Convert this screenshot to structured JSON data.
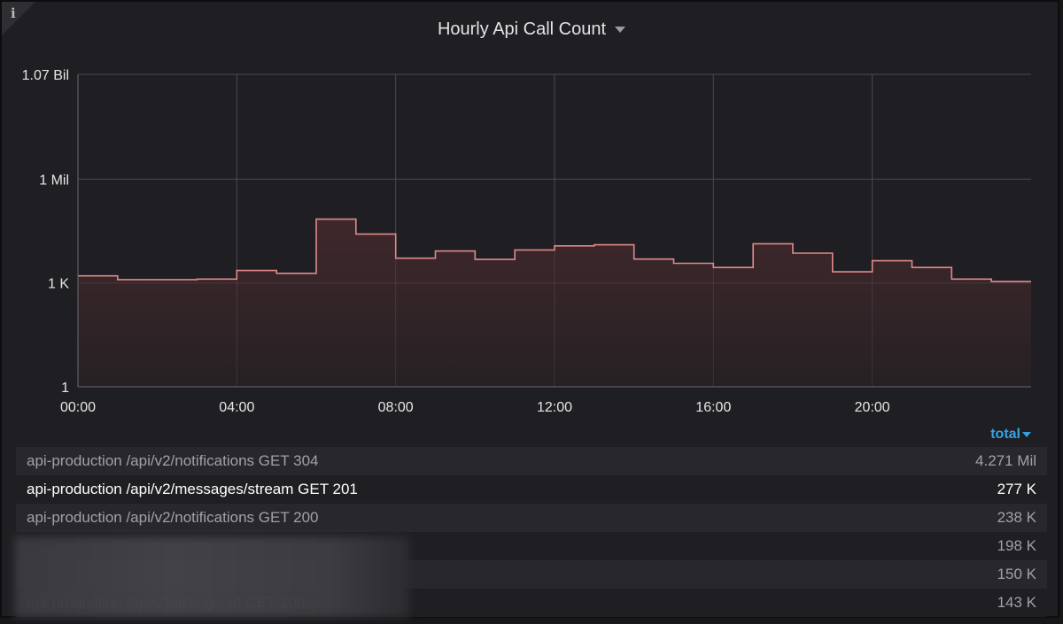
{
  "panel": {
    "title": "Hourly Api Call Count",
    "info_icon": "info-icon",
    "title_menu_icon": "caret-down-icon"
  },
  "chart_data": {
    "type": "line",
    "style": "stepped-area",
    "title": "Hourly Api Call Count",
    "yscale": "log",
    "ylim": [
      1,
      1070000000
    ],
    "xlim_hours": [
      0,
      24
    ],
    "y_tick_labels": [
      "1.07 Bil",
      "1 Mil",
      "1 K",
      "1"
    ],
    "y_tick_values": [
      1070000000,
      1000000,
      1000,
      1
    ],
    "x_tick_labels": [
      "00:00",
      "04:00",
      "08:00",
      "12:00",
      "16:00",
      "20:00"
    ],
    "x_tick_hours": [
      0,
      4,
      8,
      12,
      16,
      20
    ],
    "grid": true,
    "series": [
      {
        "color": "#e08a8a",
        "x_hours": [
          0,
          1,
          2,
          3,
          4,
          5,
          6,
          7,
          8,
          9,
          10,
          11,
          12,
          13,
          14,
          15,
          16,
          17,
          18,
          19,
          20,
          21,
          22,
          23
        ],
        "values": [
          1600,
          1250,
          1250,
          1300,
          2300,
          1900,
          70000,
          26000,
          5200,
          8400,
          4800,
          9000,
          11800,
          12700,
          4900,
          3700,
          2800,
          13600,
          7300,
          2100,
          4400,
          2800,
          1300,
          1100
        ]
      }
    ]
  },
  "legend": {
    "sort_label": "total",
    "rows": [
      {
        "name": "api-production /api/v2/notifications GET 304",
        "total": "4.271 Mil",
        "highlight": false
      },
      {
        "name": "api-production /api/v2/messages/stream GET 201",
        "total": "277 K",
        "highlight": true
      },
      {
        "name": "api-production /api/v2/notifications GET 200",
        "total": "238 K",
        "highlight": false
      },
      {
        "name": "",
        "total": "198 K",
        "highlight": false
      },
      {
        "name": "",
        "total": "150 K",
        "highlight": false
      },
      {
        "name": "api-production /api/v1/listings/:id GET 200",
        "total": "143 K",
        "highlight": false
      }
    ]
  }
}
